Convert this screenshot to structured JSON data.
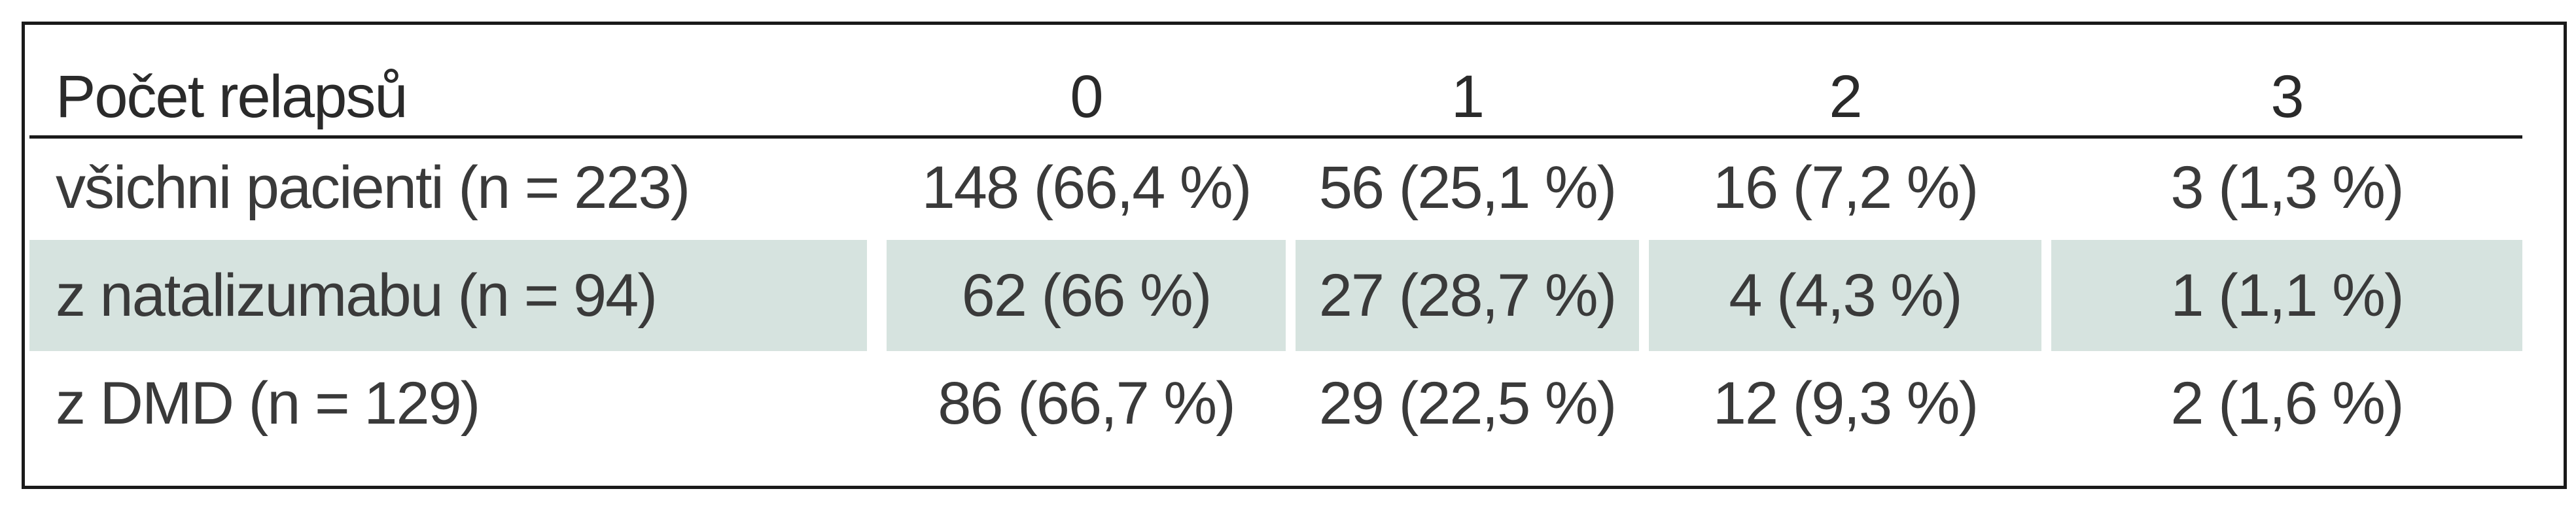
{
  "table": {
    "header": [
      "Počet relapsů",
      "0",
      "1",
      "2",
      "3"
    ],
    "rows": [
      {
        "label": "všichni pacienti (n = 223)",
        "values": [
          "148 (66,4 %)",
          "56 (25,1 %)",
          "16 (7,2 %)",
          "3 (1,3 %)"
        ],
        "shaded": false
      },
      {
        "label": "z natalizumabu (n = 94)",
        "values": [
          "62 (66 %)",
          "27 (28,7 %)",
          "4 (4,3 %)",
          "1 (1,1 %)"
        ],
        "shaded": true
      },
      {
        "label": "z DMD (n = 129)",
        "values": [
          "86 (66,7 %)",
          "29 (22,5 %)",
          "12 (9,3 %)",
          "2 (1,6 %)"
        ],
        "shaded": false
      }
    ],
    "band_color": "#d6e3df",
    "rule_color": "#1a1a1a"
  }
}
